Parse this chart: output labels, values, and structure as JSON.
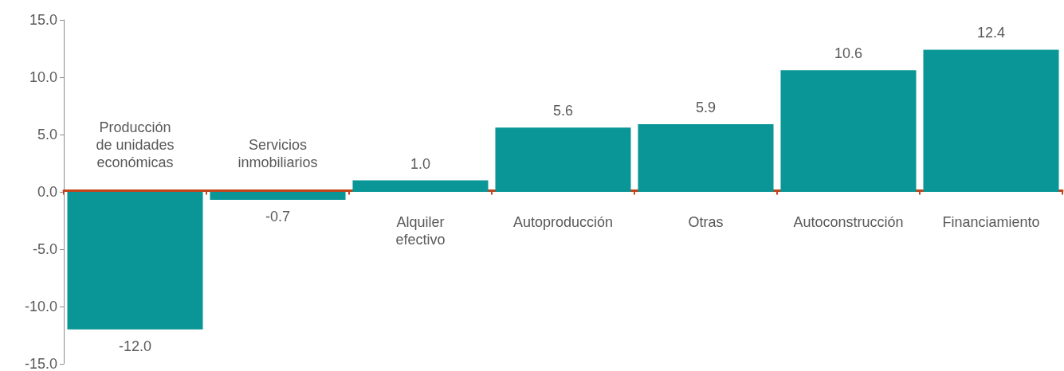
{
  "chart_data": {
    "type": "bar",
    "categories": [
      "Producción\nde unidades\neconómicas",
      "Servicios\ninmobiliarios",
      "Alquiler\nefectivo",
      "Autoproducción",
      "Otras",
      "Autoconstrucción",
      "Financiamiento"
    ],
    "values": [
      -12.0,
      -0.7,
      1.0,
      5.6,
      5.9,
      10.6,
      12.4
    ],
    "value_labels": [
      "-12.0",
      "-0.7",
      "1.0",
      "5.6",
      "5.9",
      "10.6",
      "12.4"
    ],
    "color": "#0a9696",
    "ylim": [
      -15,
      15
    ],
    "yticks": [
      {
        "value": -15,
        "label": "-15.0"
      },
      {
        "value": -10,
        "label": "-10.0"
      },
      {
        "value": -5,
        "label": "-5.0"
      },
      {
        "value": 0,
        "label": "0.0"
      },
      {
        "value": 5,
        "label": "5.0"
      },
      {
        "value": 10,
        "label": "10.0"
      },
      {
        "value": 15,
        "label": "15.0"
      }
    ],
    "grid": false
  }
}
